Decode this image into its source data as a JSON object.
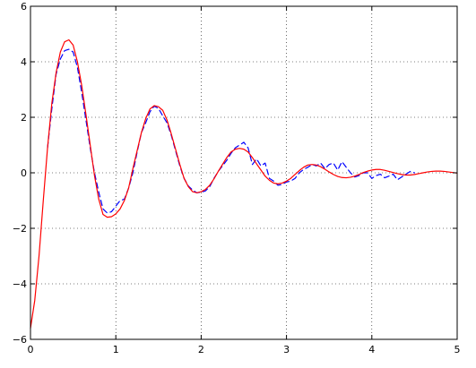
{
  "chart_data": {
    "type": "line",
    "title": "",
    "xlabel": "",
    "ylabel": "",
    "xlim": [
      0,
      5
    ],
    "ylim": [
      -6,
      6
    ],
    "x_ticks": [
      0,
      1,
      2,
      3,
      4,
      5
    ],
    "y_ticks": [
      -6,
      -4,
      -2,
      0,
      2,
      4,
      6
    ],
    "grid": true,
    "legend": "none",
    "series": [
      {
        "style": "solid",
        "color": "#ff0000",
        "x": [
          0,
          0.05,
          0.1,
          0.15,
          0.2,
          0.25,
          0.3,
          0.35,
          0.4,
          0.45,
          0.5,
          0.55,
          0.6,
          0.65,
          0.7,
          0.75,
          0.8,
          0.85,
          0.9,
          0.95,
          1.0,
          1.05,
          1.1,
          1.15,
          1.2,
          1.25,
          1.3,
          1.35,
          1.4,
          1.45,
          1.5,
          1.55,
          1.6,
          1.65,
          1.7,
          1.75,
          1.8,
          1.85,
          1.9,
          1.95,
          2.0,
          2.05,
          2.1,
          2.15,
          2.2,
          2.25,
          2.3,
          2.35,
          2.4,
          2.45,
          2.5,
          2.55,
          2.6,
          2.65,
          2.7,
          2.75,
          2.8,
          2.85,
          2.9,
          2.95,
          3.0,
          3.05,
          3.1,
          3.15,
          3.2,
          3.25,
          3.3,
          3.35,
          3.4,
          3.45,
          3.5,
          3.55,
          3.6,
          3.65,
          3.7,
          3.75,
          3.8,
          3.85,
          3.9,
          3.95,
          4.0,
          4.05,
          4.1,
          4.15,
          4.2,
          4.25,
          4.3,
          4.35,
          4.4,
          4.45,
          4.5,
          4.55,
          4.6,
          4.65,
          4.7,
          4.75,
          4.8,
          4.85,
          4.9,
          4.95,
          5.0
        ],
        "y": [
          -5.6,
          -4.6,
          -3.0,
          -1.0,
          0.9,
          2.5,
          3.6,
          4.35,
          4.72,
          4.79,
          4.6,
          4.0,
          3.15,
          2.1,
          1.0,
          -0.1,
          -0.95,
          -1.5,
          -1.6,
          -1.58,
          -1.48,
          -1.3,
          -1.0,
          -0.55,
          0.15,
          0.8,
          1.45,
          1.95,
          2.3,
          2.42,
          2.38,
          2.25,
          1.9,
          1.4,
          0.85,
          0.3,
          -0.2,
          -0.5,
          -0.68,
          -0.72,
          -0.68,
          -0.6,
          -0.45,
          -0.22,
          0.05,
          0.3,
          0.55,
          0.75,
          0.85,
          0.88,
          0.85,
          0.75,
          0.55,
          0.32,
          0.1,
          -0.12,
          -0.27,
          -0.37,
          -0.4,
          -0.37,
          -0.3,
          -0.2,
          -0.06,
          0.08,
          0.2,
          0.28,
          0.3,
          0.28,
          0.22,
          0.13,
          0.03,
          -0.06,
          -0.13,
          -0.17,
          -0.18,
          -0.16,
          -0.12,
          -0.06,
          0.01,
          0.06,
          0.1,
          0.12,
          0.12,
          0.09,
          0.05,
          0.01,
          -0.03,
          -0.06,
          -0.08,
          -0.08,
          -0.06,
          -0.03,
          0.0,
          0.03,
          0.05,
          0.06,
          0.06,
          0.05,
          0.03,
          0.01,
          -0.01
        ]
      },
      {
        "style": "dashed",
        "color": "#0000ff",
        "x": [
          0.2,
          0.25,
          0.3,
          0.35,
          0.4,
          0.45,
          0.5,
          0.55,
          0.6,
          0.65,
          0.7,
          0.75,
          0.8,
          0.85,
          0.9,
          0.95,
          1.0,
          1.05,
          1.1,
          1.15,
          1.2,
          1.25,
          1.3,
          1.35,
          1.4,
          1.45,
          1.5,
          1.55,
          1.6,
          1.65,
          1.7,
          1.75,
          1.8,
          1.85,
          1.9,
          1.95,
          2.0,
          2.05,
          2.1,
          2.15,
          2.2,
          2.25,
          2.3,
          2.35,
          2.4,
          2.45,
          2.5,
          2.55,
          2.6,
          2.65,
          2.7,
          2.75,
          2.8,
          2.85,
          2.9,
          2.95,
          3.0,
          3.05,
          3.1,
          3.15,
          3.2,
          3.25,
          3.3,
          3.35,
          3.4,
          3.45,
          3.5,
          3.55,
          3.6,
          3.65,
          3.7,
          3.75,
          3.8,
          3.85,
          3.9,
          3.95,
          4.0,
          4.05,
          4.1,
          4.15,
          4.2,
          4.25,
          4.3,
          4.35,
          4.4,
          4.45,
          4.5
        ],
        "y": [
          0.9,
          2.3,
          3.55,
          4.1,
          4.4,
          4.45,
          4.35,
          3.8,
          2.9,
          1.9,
          0.9,
          0.0,
          -0.7,
          -1.3,
          -1.45,
          -1.4,
          -1.2,
          -1.0,
          -0.95,
          -0.55,
          0.0,
          0.75,
          1.45,
          1.8,
          2.2,
          2.4,
          2.32,
          2.05,
          1.8,
          1.35,
          0.8,
          0.25,
          -0.2,
          -0.48,
          -0.62,
          -0.72,
          -0.7,
          -0.65,
          -0.5,
          -0.2,
          0.05,
          0.25,
          0.45,
          0.7,
          0.9,
          1.0,
          1.1,
          0.9,
          0.3,
          0.5,
          0.25,
          0.35,
          -0.2,
          -0.3,
          -0.45,
          -0.42,
          -0.33,
          -0.3,
          -0.2,
          0.0,
          0.12,
          0.2,
          0.3,
          0.25,
          0.35,
          0.15,
          0.3,
          0.35,
          0.1,
          0.4,
          0.2,
          0.0,
          -0.15,
          -0.1,
          0.0,
          0.0,
          -0.2,
          -0.1,
          -0.05,
          -0.18,
          -0.12,
          -0.05,
          -0.25,
          -0.15,
          -0.05,
          0.05,
          0.0
        ]
      }
    ]
  }
}
